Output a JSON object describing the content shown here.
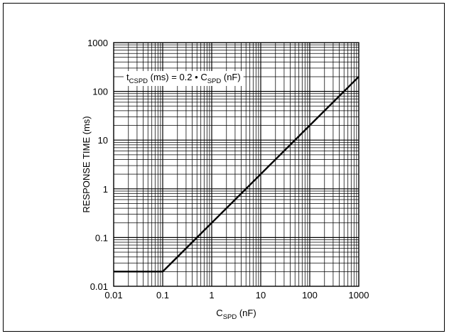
{
  "chart_data": {
    "type": "line",
    "x_scale": "log",
    "y_scale": "log",
    "xlim": [
      0.01,
      1000
    ],
    "ylim": [
      0.01,
      1000
    ],
    "grid": true,
    "xlabel": {
      "main": "C",
      "sub": "SPD",
      "unit": " (nF)"
    },
    "ylabel": "RESPONSE TIME (ms)",
    "x_ticks": [
      "0.01",
      "0.1",
      "1",
      "10",
      "100",
      "1000"
    ],
    "y_ticks": [
      "0.01",
      "0.1",
      "1",
      "10",
      "100",
      "1000"
    ],
    "annotation": {
      "parts": [
        {
          "text": "t",
          "sub": false
        },
        {
          "text": "CSPD",
          "sub": true
        },
        {
          "text": " (ms) = 0.2 ",
          "sub": false
        },
        {
          "text": "•",
          "sub": false
        },
        {
          "text": " C",
          "sub": false
        },
        {
          "text": "SPD",
          "sub": true
        },
        {
          "text": " (nF)",
          "sub": false
        }
      ]
    },
    "series": [
      {
        "x": [
          0.01,
          0.1,
          1000
        ],
        "y": [
          0.02,
          0.02,
          200
        ]
      }
    ],
    "colors": {
      "line": "#000000",
      "grid": "#000000",
      "background": "#ffffff"
    }
  }
}
